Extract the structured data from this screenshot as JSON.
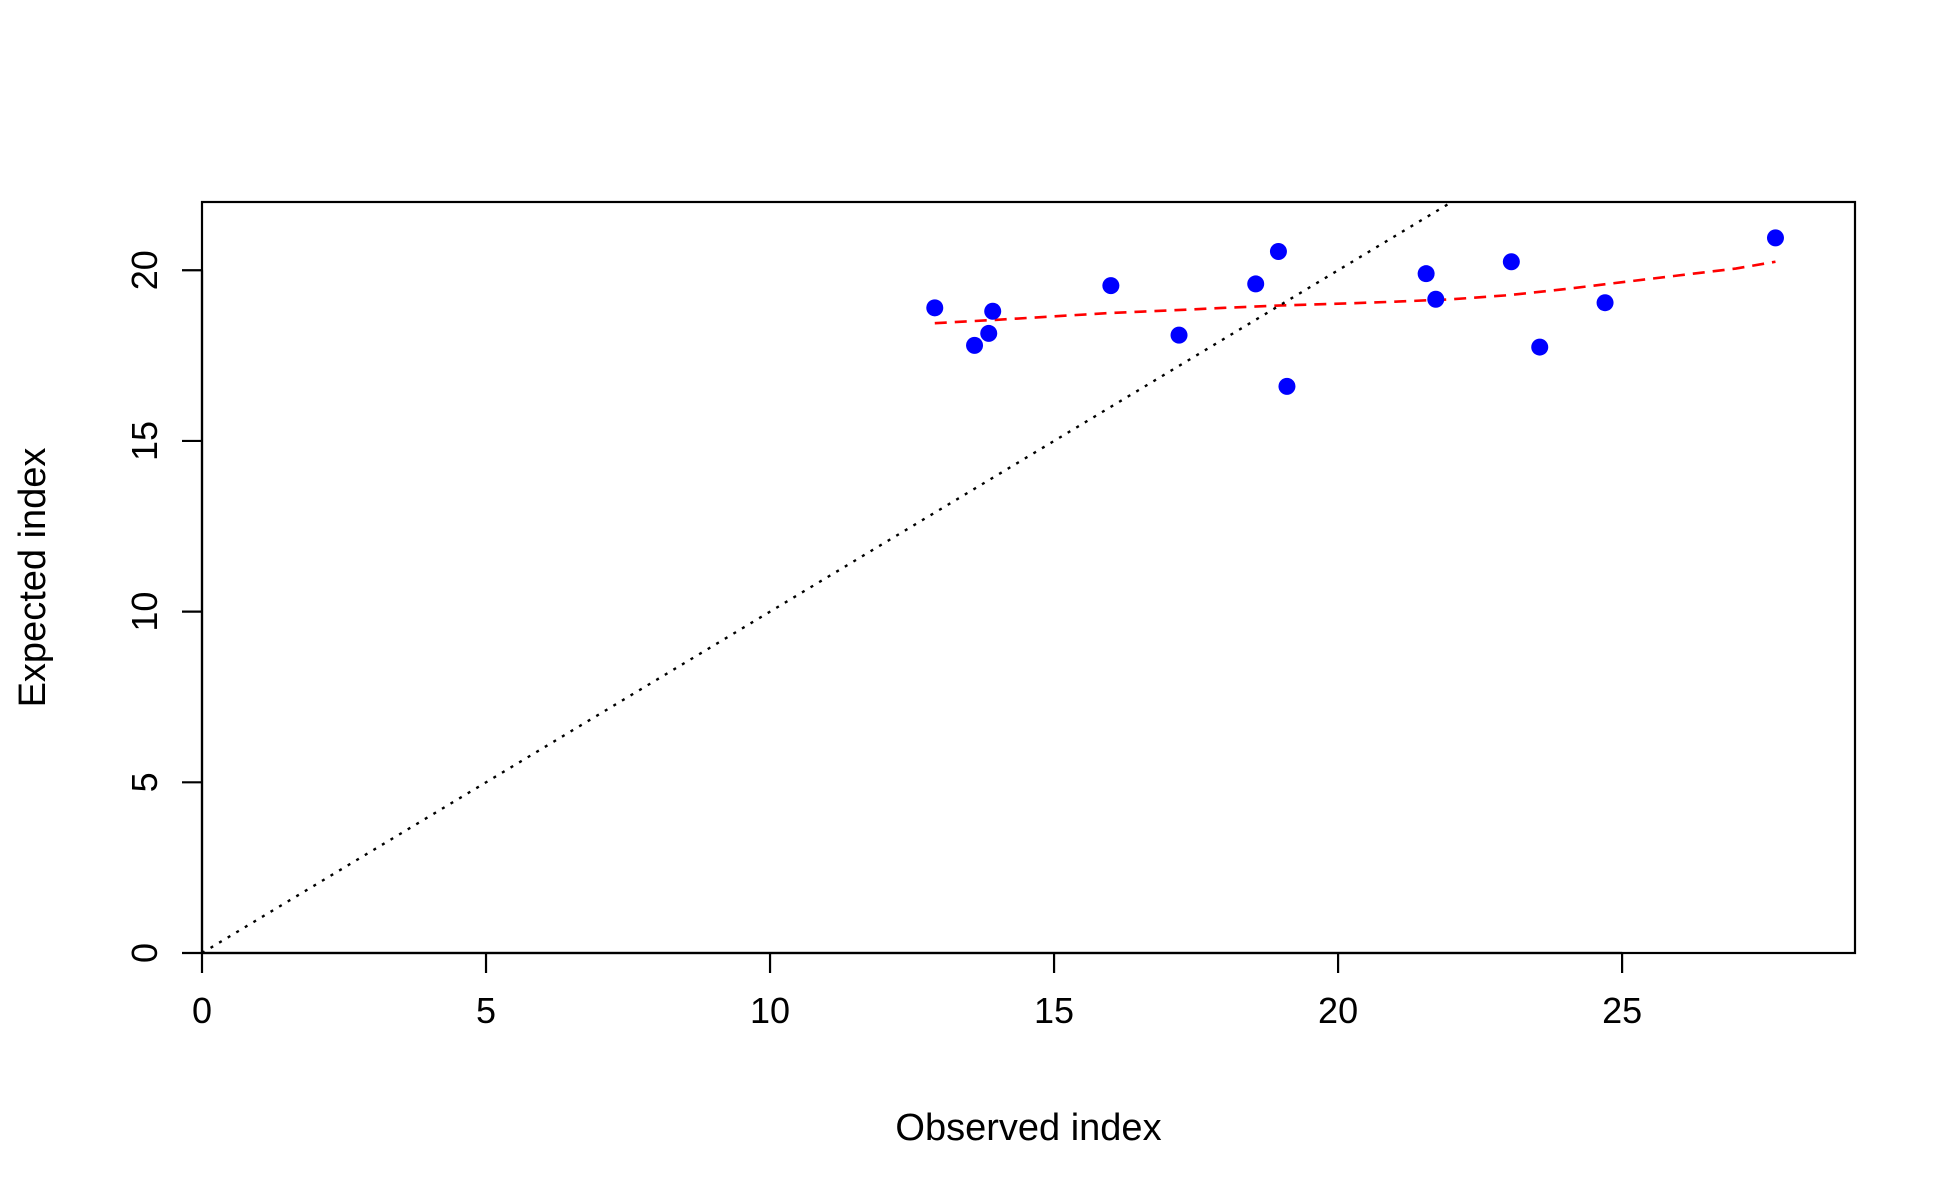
{
  "chart_data": {
    "type": "scatter",
    "title": "",
    "xlabel": "Observed index",
    "ylabel": "Expected index",
    "xlim": [
      0,
      29.1
    ],
    "ylim": [
      0,
      22
    ],
    "x_ticks": [
      0,
      5,
      10,
      15,
      20,
      25
    ],
    "x_tick_labels": [
      "0",
      "5",
      "10",
      "15",
      "20",
      "25"
    ],
    "y_ticks": [
      0,
      5,
      10,
      15,
      20
    ],
    "y_tick_labels": [
      "0",
      "5",
      "10",
      "15",
      "20"
    ],
    "grid": false,
    "legend": null,
    "colors": {
      "points": "#0000ff",
      "fit_line": "#ff0000",
      "reference_line": "#000000"
    },
    "series": [
      {
        "kind": "points",
        "marker": "filled-circle",
        "x": [
          12.9,
          13.6,
          13.85,
          13.92,
          16.0,
          17.2,
          18.55,
          18.95,
          19.1,
          21.55,
          21.72,
          23.05,
          23.55,
          24.7,
          27.7
        ],
        "y": [
          18.9,
          17.8,
          18.15,
          18.8,
          19.55,
          18.1,
          19.6,
          20.55,
          16.6,
          19.9,
          19.15,
          20.25,
          17.75,
          19.05,
          20.95
        ]
      },
      {
        "kind": "line",
        "style": "dashed",
        "x": [
          12.9,
          14.0,
          15.0,
          16.0,
          17.0,
          18.0,
          19.0,
          20.0,
          21.0,
          22.0,
          23.0,
          24.0,
          25.0,
          26.0,
          27.0,
          27.7
        ],
        "y": [
          18.45,
          18.55,
          18.65,
          18.75,
          18.82,
          18.9,
          18.97,
          19.02,
          19.08,
          19.15,
          19.27,
          19.45,
          19.65,
          19.85,
          20.05,
          20.25
        ]
      },
      {
        "kind": "line",
        "style": "dotted",
        "x": [
          0,
          22
        ],
        "y": [
          0,
          22
        ]
      }
    ]
  }
}
